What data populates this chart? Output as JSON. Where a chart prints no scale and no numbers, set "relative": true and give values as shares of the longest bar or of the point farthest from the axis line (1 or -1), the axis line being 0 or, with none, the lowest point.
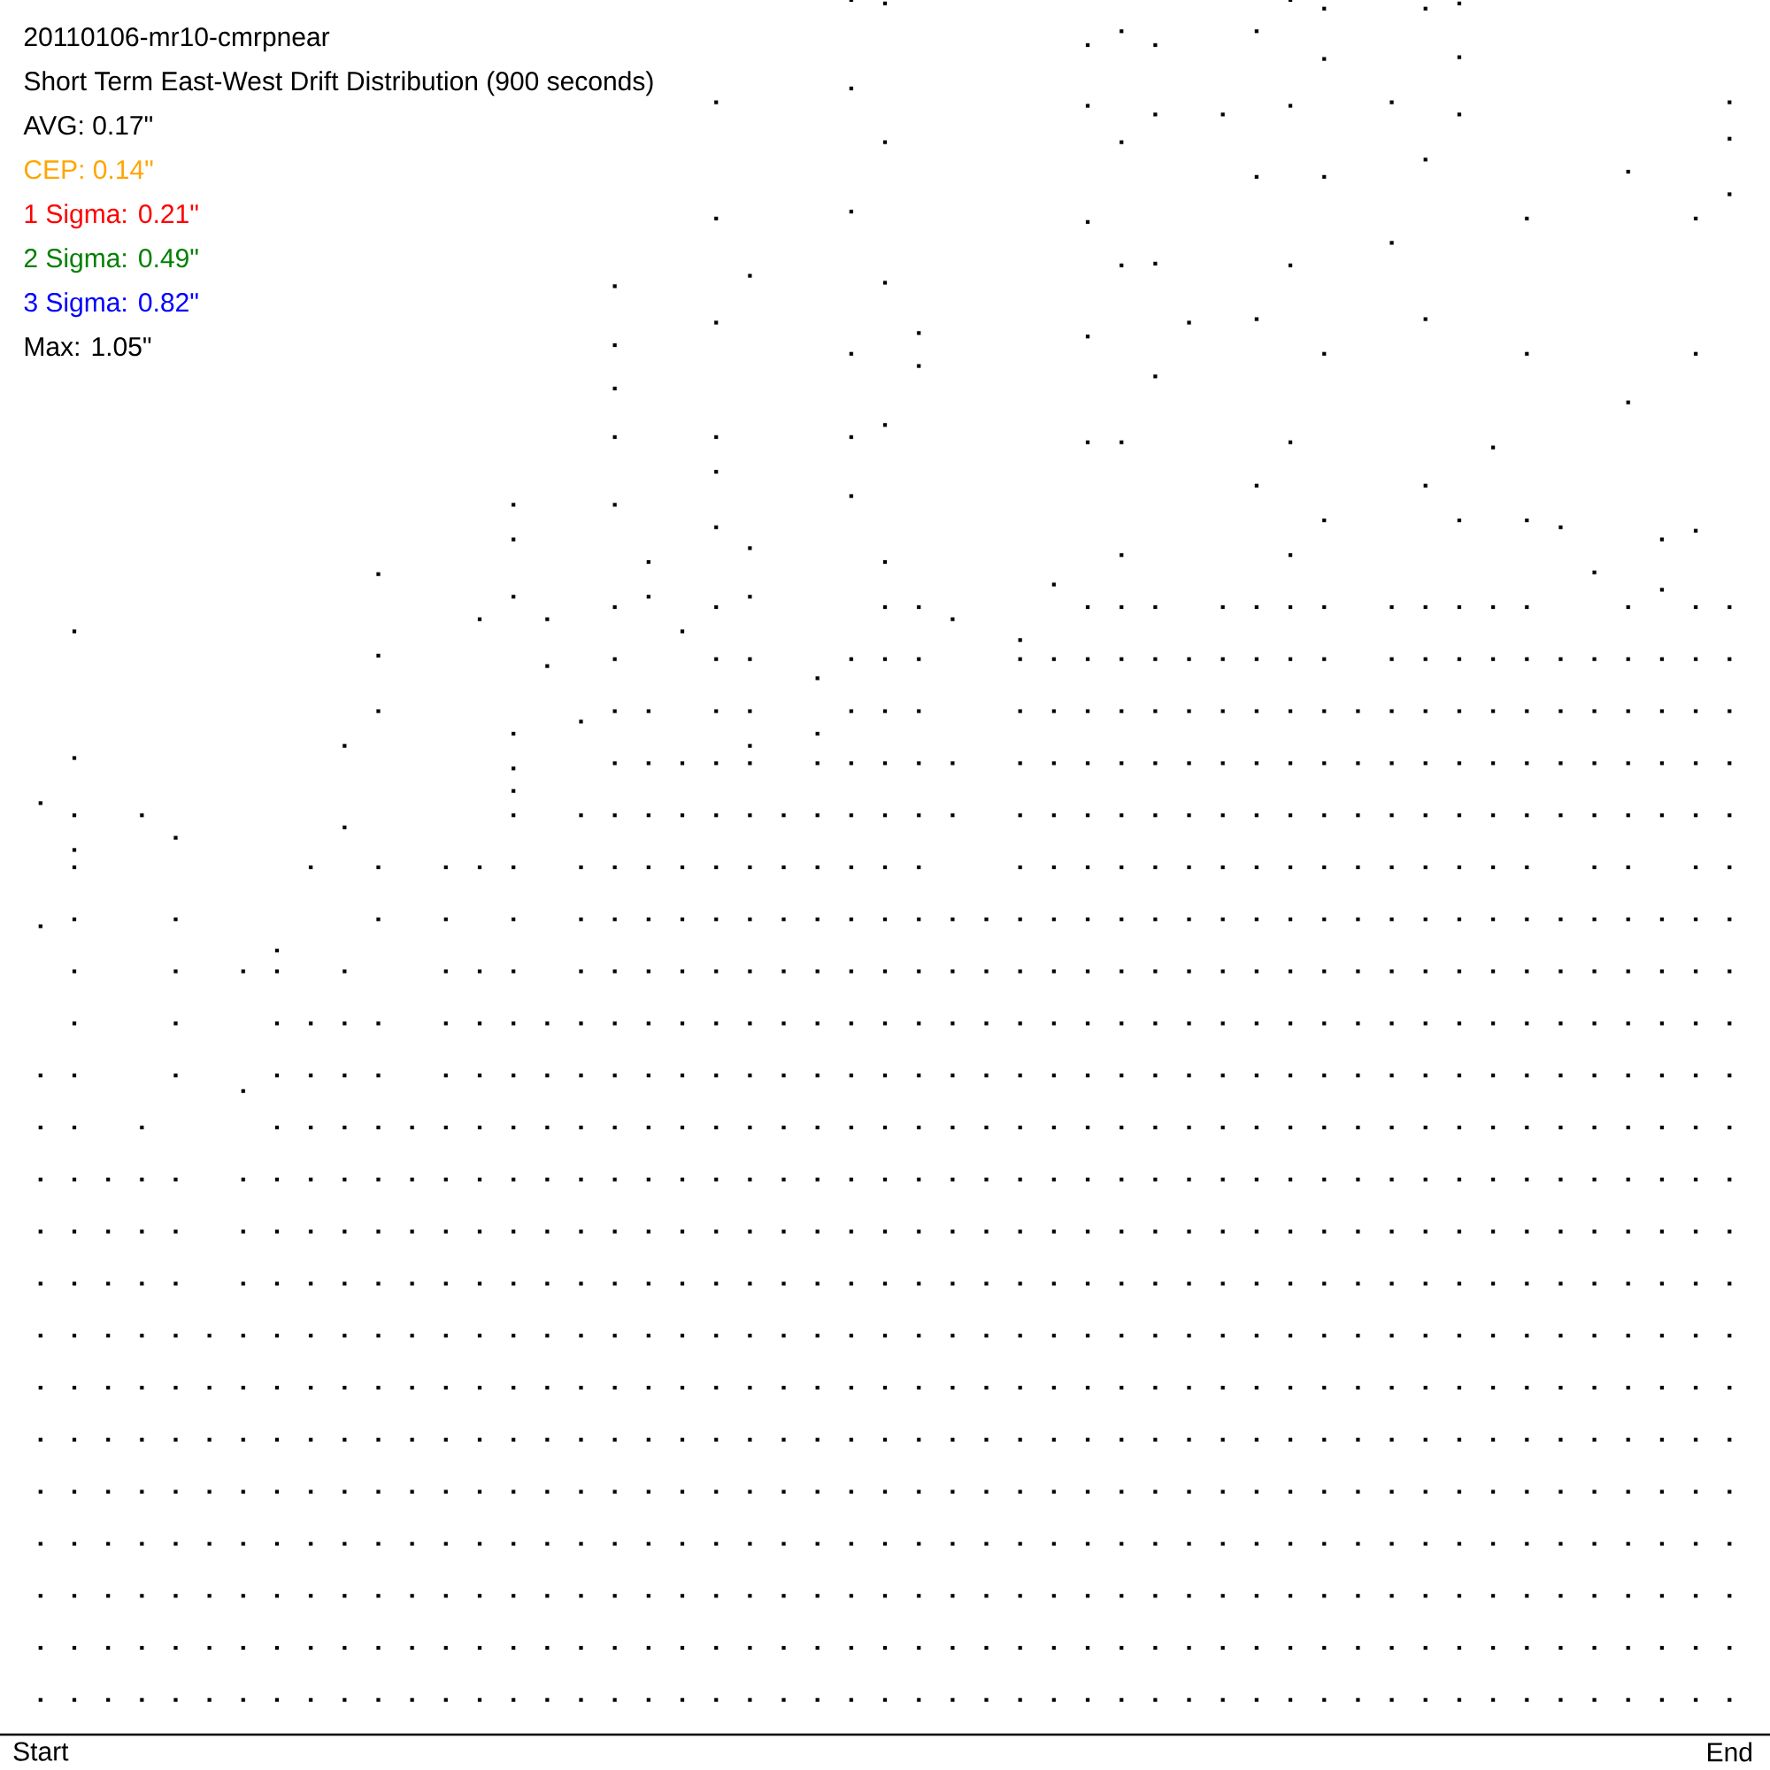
{
  "chart_data": {
    "type": "scatter",
    "title": "20110106-mr10-cmrpnear",
    "subtitle": "Short Term East-West Drift Distribution (900 seconds)",
    "annotations": [
      "AVG: 0.17\"",
      "CEP: 0.14\"",
      "1 Sigma: 0.21\"",
      "2 Sigma: 0.49\"",
      "3 Sigma: 0.82\"",
      "Max: 1.05\""
    ],
    "relative": true,
    "marker": "square",
    "tick_labels": "x",
    "categories": [
      "Start",
      null,
      null,
      null,
      null,
      null,
      null,
      null,
      null,
      null,
      null,
      null,
      null,
      null,
      null,
      null,
      null,
      null,
      null,
      null,
      null,
      null,
      null,
      null,
      null,
      null,
      null,
      null,
      null,
      null,
      null,
      null,
      null,
      null,
      null,
      null,
      null,
      null,
      null,
      null,
      null,
      null,
      null,
      null,
      null,
      null,
      null,
      null,
      null,
      null,
      "End"
    ],
    "series": [
      {
        "color": "#000000",
        "values": [
          0.02,
          0.02,
          0.02,
          0.02,
          0.02,
          0.02,
          0.02,
          0.02,
          0.02,
          0.02,
          0.02,
          0.02,
          0.02,
          0.02,
          0.02,
          0.02,
          0.02,
          0.02,
          0.02,
          0.02,
          0.02,
          0.02,
          0.02,
          0.02,
          0.02,
          0.02,
          0.02,
          0.02,
          0.02,
          0.02,
          0.02,
          0.02,
          0.02,
          0.02,
          0.02,
          0.02,
          0.02,
          0.02,
          0.02,
          0.02,
          0.02,
          0.02,
          0.02,
          0.02,
          0.02,
          0.02,
          0.02,
          0.02,
          0.02,
          0.02,
          0.02
        ]
      },
      {
        "color": "#000000",
        "values": [
          0.05,
          0.05,
          0.05,
          0.05,
          0.05,
          0.05,
          0.05,
          0.05,
          0.05,
          0.05,
          0.05,
          0.05,
          0.05,
          0.05,
          0.05,
          0.05,
          0.05,
          0.05,
          0.05,
          0.05,
          0.05,
          0.05,
          0.05,
          0.05,
          0.05,
          0.05,
          0.05,
          0.05,
          0.05,
          0.05,
          0.05,
          0.05,
          0.05,
          0.05,
          0.05,
          0.05,
          0.05,
          0.05,
          0.05,
          0.05,
          0.05,
          0.05,
          0.05,
          0.05,
          0.05,
          0.05,
          0.05,
          0.05,
          0.05,
          0.05,
          0.05
        ]
      },
      {
        "color": "#000000",
        "values": [
          0.08,
          0.08,
          0.08,
          0.08,
          0.08,
          0.08,
          0.08,
          0.08,
          0.08,
          0.08,
          0.08,
          0.08,
          0.08,
          0.08,
          0.08,
          0.08,
          0.08,
          0.08,
          0.08,
          0.08,
          0.08,
          0.08,
          0.08,
          0.08,
          0.08,
          0.08,
          0.08,
          0.08,
          0.08,
          0.08,
          0.08,
          0.08,
          0.08,
          0.08,
          0.08,
          0.08,
          0.08,
          0.08,
          0.08,
          0.08,
          0.08,
          0.08,
          0.08,
          0.08,
          0.08,
          0.08,
          0.08,
          0.08,
          0.08,
          0.08,
          0.08
        ]
      },
      {
        "color": "#000000",
        "values": [
          0.11,
          0.11,
          0.11,
          0.11,
          0.11,
          0.11,
          0.11,
          0.11,
          0.11,
          0.11,
          0.11,
          0.11,
          0.11,
          0.11,
          0.11,
          0.11,
          0.11,
          0.11,
          0.11,
          0.11,
          0.11,
          0.11,
          0.11,
          0.11,
          0.11,
          0.11,
          0.11,
          0.11,
          0.11,
          0.11,
          0.11,
          0.11,
          0.11,
          0.11,
          0.11,
          0.11,
          0.11,
          0.11,
          0.11,
          0.11,
          0.11,
          0.11,
          0.11,
          0.11,
          0.11,
          0.11,
          0.11,
          0.11,
          0.11,
          0.11,
          0.11
        ]
      },
      {
        "color": "#000000",
        "values": [
          0.14,
          0.14,
          0.14,
          0.14,
          0.14,
          0.14,
          0.14,
          0.14,
          0.14,
          0.14,
          0.14,
          0.14,
          0.14,
          0.14,
          0.14,
          0.14,
          0.14,
          0.14,
          0.14,
          0.14,
          0.14,
          0.14,
          0.14,
          0.14,
          0.14,
          0.14,
          0.14,
          0.14,
          0.14,
          0.14,
          0.14,
          0.14,
          0.14,
          0.14,
          0.14,
          0.14,
          0.14,
          0.14,
          0.14,
          0.14,
          0.14,
          0.14,
          0.14,
          0.14,
          0.14,
          0.14,
          0.14,
          0.14,
          0.14,
          0.14,
          0.14
        ]
      },
      {
        "color": "#000000",
        "values": [
          0.17,
          0.17,
          0.17,
          0.17,
          0.17,
          0.17,
          0.17,
          0.17,
          0.17,
          0.17,
          0.17,
          0.17,
          0.17,
          0.17,
          0.17,
          0.17,
          0.17,
          0.17,
          0.17,
          0.17,
          0.17,
          0.17,
          0.17,
          0.17,
          0.17,
          0.17,
          0.17,
          0.17,
          0.17,
          0.17,
          0.17,
          0.17,
          0.17,
          0.17,
          0.17,
          0.17,
          0.17,
          0.17,
          0.17,
          0.17,
          0.17,
          0.17,
          0.17,
          0.17,
          0.17,
          0.17,
          0.17,
          0.17,
          0.17,
          0.17,
          0.17
        ]
      },
      {
        "color": "#000000",
        "values": [
          0.2,
          0.2,
          0.2,
          0.2,
          0.2,
          0.2,
          0.2,
          0.2,
          0.2,
          0.2,
          0.2,
          0.2,
          0.2,
          0.2,
          0.2,
          0.2,
          0.2,
          0.2,
          0.2,
          0.2,
          0.2,
          0.2,
          0.2,
          0.2,
          0.2,
          0.2,
          0.2,
          0.2,
          0.2,
          0.2,
          0.2,
          0.2,
          0.2,
          0.2,
          0.2,
          0.2,
          0.2,
          0.2,
          0.2,
          0.2,
          0.2,
          0.2,
          0.2,
          0.2,
          0.2,
          0.2,
          0.2,
          0.2,
          0.2,
          0.2,
          0.2
        ]
      },
      {
        "color": "#000000",
        "values": [
          0.23,
          0.23,
          0.23,
          0.23,
          0.23,
          0.23,
          0.23,
          0.23,
          0.23,
          0.23,
          0.23,
          0.23,
          0.23,
          0.23,
          0.23,
          0.23,
          0.23,
          0.23,
          0.23,
          0.23,
          0.23,
          0.23,
          0.23,
          0.23,
          0.23,
          0.23,
          0.23,
          0.23,
          0.23,
          0.23,
          0.23,
          0.23,
          0.23,
          0.23,
          0.23,
          0.23,
          0.23,
          0.23,
          0.23,
          0.23,
          0.23,
          0.23,
          0.23,
          0.23,
          0.23,
          0.23,
          0.23,
          0.23,
          0.23,
          0.23,
          0.23
        ]
      },
      {
        "color": "#000000",
        "values": [
          0.26,
          0.26,
          0.26,
          0.26,
          0.26,
          null,
          0.26,
          0.26,
          0.26,
          0.26,
          0.26,
          0.26,
          0.26,
          0.26,
          0.26,
          0.26,
          0.26,
          0.26,
          0.26,
          0.26,
          0.26,
          0.26,
          0.26,
          0.26,
          0.26,
          0.26,
          0.26,
          0.26,
          0.26,
          0.26,
          0.26,
          0.26,
          0.26,
          0.26,
          0.26,
          0.26,
          0.26,
          0.26,
          0.26,
          0.26,
          0.26,
          0.26,
          0.26,
          0.26,
          0.26,
          0.26,
          0.26,
          0.26,
          0.26,
          0.26,
          0.26
        ]
      },
      {
        "color": "#000000",
        "values": [
          0.29,
          0.29,
          0.29,
          0.29,
          0.29,
          null,
          0.29,
          0.29,
          0.29,
          0.29,
          0.29,
          0.29,
          0.29,
          0.29,
          0.29,
          0.29,
          0.29,
          0.29,
          0.29,
          0.29,
          0.29,
          0.29,
          0.29,
          0.29,
          0.29,
          0.29,
          0.29,
          0.29,
          0.29,
          0.29,
          0.29,
          0.29,
          0.29,
          0.29,
          0.29,
          0.29,
          0.29,
          0.29,
          0.29,
          0.29,
          0.29,
          0.29,
          0.29,
          0.29,
          0.29,
          0.29,
          0.29,
          0.29,
          0.29,
          0.29,
          0.29
        ]
      },
      {
        "color": "#000000",
        "values": [
          0.32,
          0.32,
          0.32,
          0.32,
          0.32,
          null,
          0.32,
          0.32,
          0.32,
          0.32,
          0.32,
          0.32,
          0.32,
          0.32,
          0.32,
          0.32,
          0.32,
          0.32,
          0.32,
          0.32,
          0.32,
          0.32,
          0.32,
          0.32,
          0.32,
          0.32,
          0.32,
          0.32,
          0.32,
          0.32,
          0.32,
          0.32,
          0.32,
          0.32,
          0.32,
          0.32,
          0.32,
          0.32,
          0.32,
          0.32,
          0.32,
          0.32,
          0.32,
          0.32,
          0.32,
          0.32,
          0.32,
          0.32,
          0.32,
          0.32,
          0.32
        ]
      },
      {
        "color": "#000000",
        "values": [
          0.35,
          0.35,
          null,
          0.35,
          null,
          null,
          null,
          0.35,
          0.35,
          0.35,
          0.35,
          0.35,
          0.35,
          0.35,
          0.35,
          0.35,
          0.35,
          0.35,
          0.35,
          0.35,
          0.35,
          0.35,
          0.35,
          0.35,
          0.35,
          0.35,
          0.35,
          0.35,
          0.35,
          0.35,
          0.35,
          0.35,
          0.35,
          0.35,
          0.35,
          0.35,
          0.35,
          0.35,
          0.35,
          0.35,
          0.35,
          0.35,
          0.35,
          0.35,
          0.35,
          0.35,
          0.35,
          0.35,
          0.35,
          0.35,
          0.35
        ]
      },
      {
        "color": "#000000",
        "values": [
          0.38,
          0.38,
          null,
          null,
          0.38,
          null,
          null,
          0.38,
          0.38,
          0.38,
          0.38,
          null,
          0.38,
          0.38,
          0.38,
          0.38,
          0.38,
          0.38,
          0.38,
          0.38,
          0.38,
          0.38,
          0.38,
          0.38,
          0.38,
          0.38,
          0.38,
          0.38,
          0.38,
          0.38,
          0.38,
          0.38,
          0.38,
          0.38,
          0.38,
          0.38,
          0.38,
          0.38,
          0.38,
          0.38,
          0.38,
          0.38,
          0.38,
          0.38,
          0.38,
          0.38,
          0.38,
          0.38,
          0.38,
          0.38,
          0.38
        ]
      },
      {
        "color": "#000000",
        "values": [
          null,
          0.41,
          null,
          null,
          0.41,
          null,
          null,
          0.41,
          0.41,
          0.41,
          0.41,
          null,
          0.41,
          0.41,
          0.41,
          0.41,
          0.41,
          0.41,
          0.41,
          0.41,
          0.41,
          0.41,
          0.41,
          0.41,
          0.41,
          0.41,
          0.41,
          0.41,
          0.41,
          0.41,
          0.41,
          0.41,
          0.41,
          0.41,
          0.41,
          0.41,
          0.41,
          0.41,
          0.41,
          0.41,
          0.41,
          0.41,
          0.41,
          0.41,
          0.41,
          0.41,
          0.41,
          0.41,
          0.41,
          0.41,
          0.41
        ]
      },
      {
        "color": "#000000",
        "values": [
          null,
          0.44,
          null,
          null,
          0.44,
          null,
          0.44,
          0.44,
          null,
          0.44,
          null,
          null,
          0.44,
          0.44,
          0.44,
          null,
          0.44,
          0.44,
          0.44,
          0.44,
          0.44,
          0.44,
          0.44,
          0.44,
          0.44,
          0.44,
          0.44,
          0.44,
          0.44,
          0.44,
          0.44,
          0.44,
          0.44,
          0.44,
          0.44,
          0.44,
          0.44,
          0.44,
          0.44,
          0.44,
          0.44,
          0.44,
          0.44,
          0.44,
          0.44,
          0.44,
          0.44,
          0.44,
          0.44,
          0.44,
          0.44
        ]
      },
      {
        "color": "#000000",
        "values": [
          null,
          0.47,
          null,
          null,
          0.47,
          null,
          null,
          null,
          null,
          null,
          0.47,
          null,
          0.47,
          null,
          0.47,
          null,
          0.47,
          0.47,
          0.47,
          0.47,
          0.47,
          0.47,
          0.47,
          0.47,
          0.47,
          0.47,
          0.47,
          0.47,
          0.47,
          0.47,
          0.47,
          0.47,
          0.47,
          0.47,
          0.47,
          0.47,
          0.47,
          0.47,
          0.47,
          0.47,
          0.47,
          0.47,
          0.47,
          0.47,
          0.47,
          0.47,
          0.47,
          0.47,
          0.47,
          0.47,
          0.47
        ]
      },
      {
        "color": "#000000",
        "values": [
          null,
          0.5,
          null,
          null,
          null,
          null,
          null,
          null,
          0.5,
          null,
          0.5,
          null,
          0.5,
          0.5,
          0.5,
          null,
          0.5,
          0.5,
          0.5,
          0.5,
          0.5,
          0.5,
          0.5,
          0.5,
          0.5,
          0.5,
          0.5,
          null,
          null,
          0.5,
          0.5,
          0.5,
          0.5,
          0.5,
          0.5,
          0.5,
          0.5,
          0.5,
          0.5,
          0.5,
          0.5,
          0.5,
          0.5,
          0.5,
          0.5,
          null,
          0.5,
          0.5,
          null,
          0.5,
          0.5
        ]
      },
      {
        "color": "#000000",
        "values": [
          null,
          0.53,
          null,
          0.53,
          null,
          null,
          null,
          null,
          null,
          null,
          null,
          null,
          null,
          null,
          0.53,
          null,
          0.53,
          0.53,
          0.53,
          0.53,
          0.53,
          0.53,
          0.53,
          0.53,
          0.53,
          0.53,
          0.53,
          0.53,
          null,
          0.53,
          0.53,
          0.53,
          0.53,
          0.53,
          0.53,
          0.53,
          0.53,
          0.53,
          0.53,
          0.53,
          0.53,
          0.53,
          0.53,
          0.53,
          0.53,
          0.53,
          0.53,
          0.53,
          0.53,
          0.53,
          0.53
        ]
      },
      {
        "color": "#000000",
        "values": [
          null,
          null,
          null,
          null,
          null,
          null,
          null,
          null,
          null,
          null,
          null,
          null,
          null,
          null,
          null,
          null,
          null,
          0.56,
          0.56,
          0.56,
          0.56,
          0.56,
          null,
          0.56,
          0.56,
          0.56,
          0.56,
          0.56,
          null,
          0.56,
          0.56,
          0.56,
          0.56,
          0.56,
          0.56,
          0.56,
          0.56,
          0.56,
          0.56,
          0.56,
          0.56,
          0.56,
          0.56,
          0.56,
          0.56,
          0.56,
          0.56,
          0.56,
          0.56,
          0.56,
          0.56
        ]
      },
      {
        "color": "#000000",
        "values": [
          null,
          null,
          null,
          null,
          null,
          null,
          null,
          null,
          null,
          null,
          null,
          null,
          null,
          null,
          null,
          null,
          null,
          0.59,
          0.59,
          null,
          0.59,
          0.59,
          null,
          null,
          0.59,
          0.59,
          0.59,
          null,
          null,
          0.59,
          0.59,
          0.59,
          0.59,
          0.59,
          0.59,
          0.59,
          0.59,
          0.59,
          0.59,
          0.59,
          0.59,
          0.59,
          0.59,
          0.59,
          0.59,
          0.59,
          0.59,
          0.59,
          0.59,
          0.59,
          0.59
        ]
      },
      {
        "color": "#000000",
        "values": [
          null,
          null,
          null,
          null,
          null,
          null,
          null,
          null,
          null,
          null,
          null,
          null,
          null,
          null,
          null,
          null,
          null,
          0.62,
          null,
          null,
          0.62,
          0.62,
          null,
          null,
          0.62,
          0.62,
          0.62,
          null,
          null,
          0.62,
          0.62,
          0.62,
          0.62,
          0.62,
          0.62,
          0.62,
          0.62,
          0.62,
          0.62,
          null,
          0.62,
          0.62,
          0.62,
          0.62,
          0.62,
          0.62,
          0.62,
          0.62,
          0.62,
          0.62,
          0.62
        ]
      },
      {
        "color": "#000000",
        "values": [
          null,
          null,
          null,
          null,
          null,
          null,
          null,
          null,
          null,
          null,
          null,
          null,
          null,
          null,
          null,
          null,
          null,
          0.65,
          null,
          null,
          0.65,
          null,
          null,
          null,
          null,
          0.65,
          0.65,
          null,
          null,
          null,
          null,
          0.65,
          0.65,
          0.65,
          null,
          0.65,
          0.65,
          0.65,
          0.65,
          null,
          0.65,
          0.65,
          0.65,
          0.65,
          0.65,
          null,
          null,
          0.65,
          null,
          0.65,
          0.65
        ]
      },
      {
        "color": "#000000",
        "values": [
          0.537,
          0.636,
          null,
          null,
          0.517,
          null,
          0.371,
          0.452,
          null,
          0.57,
          0.669,
          null,
          null,
          0.643,
          0.709,
          0.643,
          0.584,
          0.835,
          0.676,
          0.636,
          0.941,
          0.841,
          null,
          0.609,
          1,
          0.998,
          0.808,
          0.643,
          null,
          0.631,
          0.663,
          0.974,
          0.982,
          0.974,
          0.814,
          0.934,
          0.982,
          1,
          0.995,
          null,
          0.941,
          0.995,
          0.998,
          0.742,
          0.874,
          0.696,
          0.67,
          0.901,
          0.689,
          0.874,
          0.941
        ]
      },
      {
        "color": "#000000",
        "values": [
          0.466,
          0.563,
          null,
          null,
          null,
          null,
          null,
          null,
          null,
          0.523,
          0.622,
          null,
          null,
          null,
          0.689,
          0.616,
          null,
          0.801,
          0.656,
          null,
          0.874,
          0.684,
          null,
          0.577,
          0.949,
          0.918,
          0.789,
          null,
          null,
          null,
          null,
          0.939,
          0.918,
          0.934,
          null,
          null,
          0.898,
          0.939,
          0.966,
          null,
          0.86,
          0.908,
          0.967,
          null,
          0.796,
          null,
          null,
          0.768,
          0.66,
          0.796,
          0.92
        ]
      },
      {
        "color": "#000000",
        "values": [
          null,
          0.51,
          null,
          null,
          null,
          null,
          null,
          null,
          null,
          null,
          0.59,
          null,
          null,
          null,
          0.656,
          null,
          null,
          0.776,
          null,
          null,
          0.814,
          0.656,
          null,
          null,
          0.878,
          0.837,
          null,
          null,
          null,
          null,
          null,
          0.872,
          0.847,
          0.848,
          null,
          null,
          0.816,
          0.847,
          0.898,
          null,
          null,
          0.816,
          0.934,
          null,
          0.7,
          null,
          null,
          null,
          null,
          0.694,
          0.888
        ]
      },
      {
        "color": "#000000",
        "values": [
          null,
          null,
          null,
          null,
          null,
          null,
          null,
          null,
          null,
          null,
          null,
          null,
          null,
          null,
          0.577,
          null,
          null,
          0.748,
          null,
          null,
          0.748,
          0.57,
          null,
          null,
          0.796,
          0.755,
          null,
          null,
          null,
          null,
          null,
          0.806,
          0.745,
          0.783,
          null,
          null,
          0.72,
          0.745,
          0.796,
          null,
          null,
          0.72,
          0.7,
          null,
          null,
          null,
          null,
          null,
          null,
          null,
          null
        ]
      },
      {
        "color": "#000000",
        "values": [
          null,
          null,
          null,
          null,
          null,
          null,
          null,
          null,
          null,
          null,
          null,
          null,
          null,
          null,
          0.557,
          null,
          null,
          0.709,
          null,
          null,
          0.728,
          null,
          null,
          null,
          0.748,
          0.676,
          null,
          null,
          null,
          null,
          null,
          0.745,
          0.68,
          null,
          null,
          null,
          null,
          0.68,
          0.7,
          null,
          null,
          null,
          null,
          null,
          null,
          null,
          null,
          null,
          null,
          null,
          null
        ]
      },
      {
        "color": "#000000",
        "values": [
          null,
          null,
          null,
          null,
          null,
          null,
          null,
          null,
          null,
          null,
          null,
          null,
          null,
          null,
          0.544,
          null,
          null,
          null,
          null,
          null,
          0.696,
          null,
          null,
          null,
          0.714,
          null,
          null,
          null,
          null,
          null,
          null,
          null,
          null,
          null,
          null,
          null,
          null,
          null,
          null,
          null,
          null,
          null,
          null,
          null,
          null,
          null,
          null,
          null,
          null,
          null,
          null
        ]
      }
    ]
  }
}
